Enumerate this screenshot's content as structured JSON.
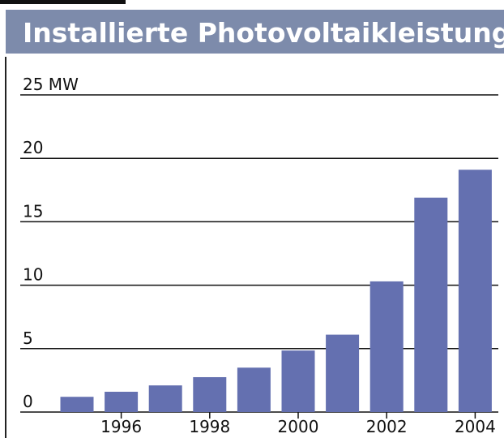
{
  "chart_data": {
    "type": "bar",
    "title": "Installierte Photovoltaikleistung",
    "categories": [
      null,
      "1996",
      null,
      "1998",
      null,
      "2000",
      null,
      "2002",
      null,
      "2004"
    ],
    "values": [
      1.2,
      1.6,
      2.1,
      2.75,
      3.5,
      4.85,
      6.1,
      10.3,
      16.9,
      19.1
    ],
    "color": "#6470b0",
    "ylim": [
      0,
      25
    ],
    "yticks": [
      0,
      5,
      10,
      15,
      20,
      {
        "value": 25,
        "label": "25 MW"
      }
    ],
    "grid": true
  }
}
